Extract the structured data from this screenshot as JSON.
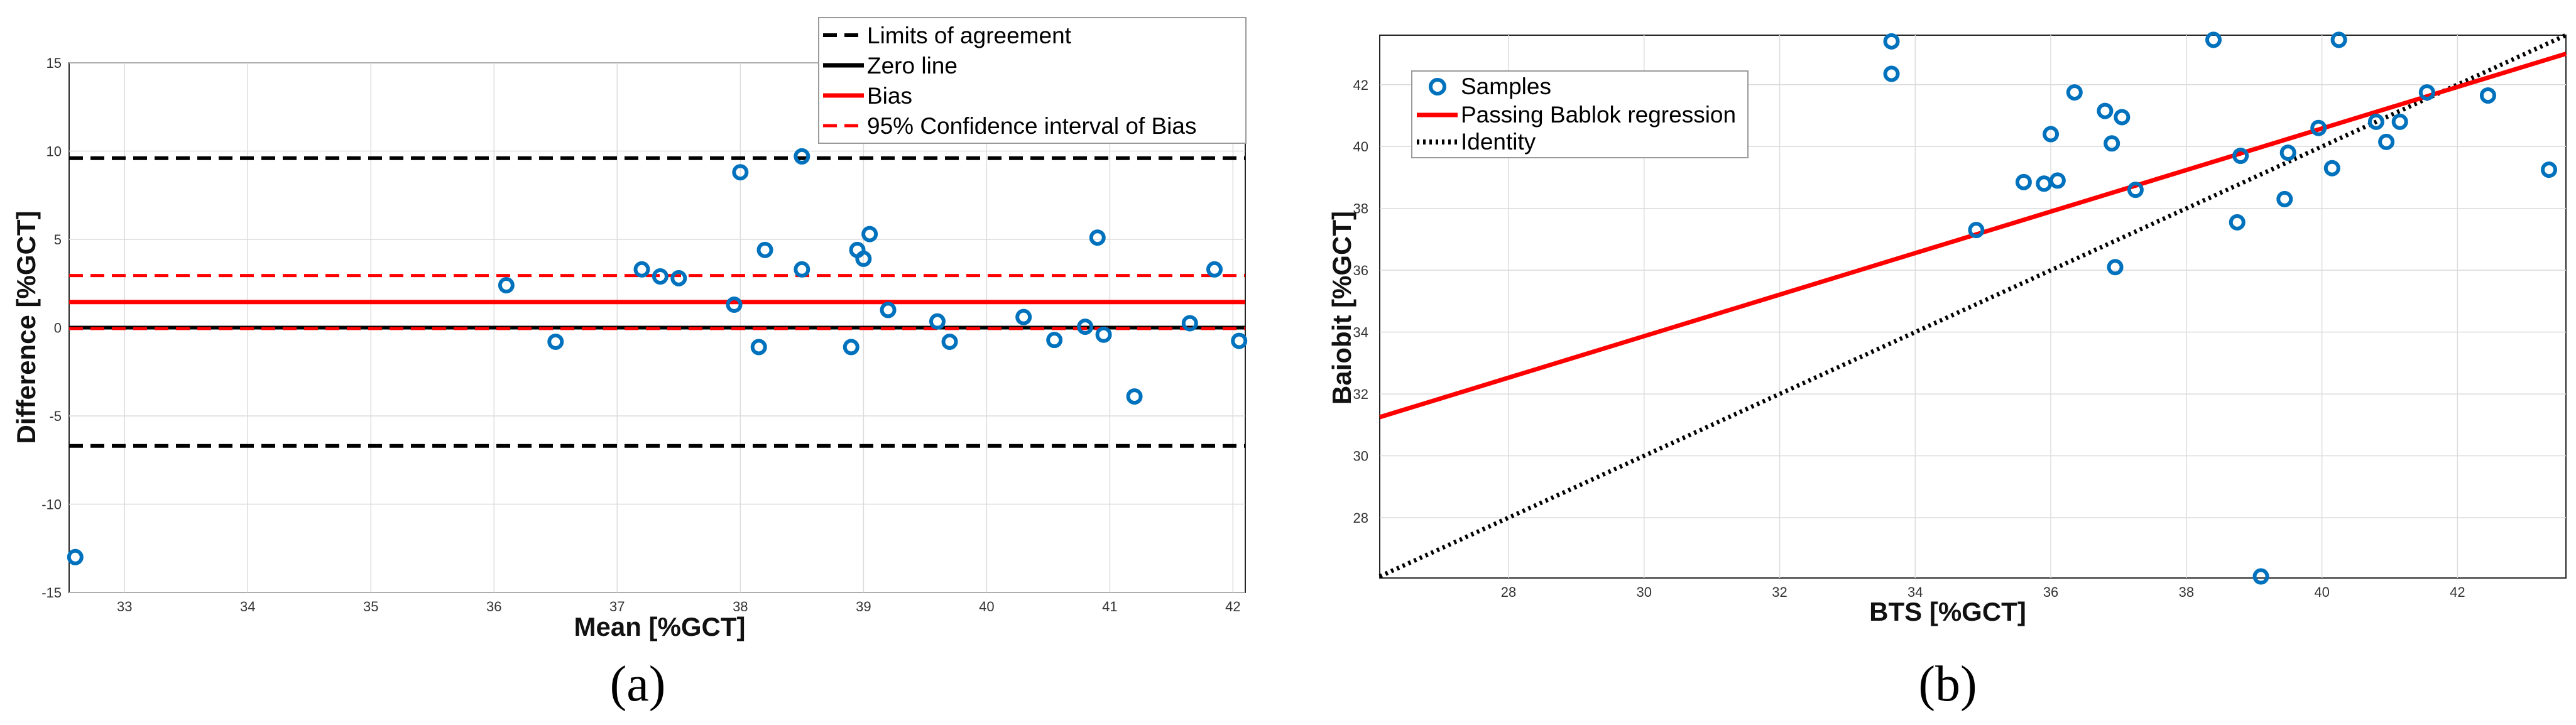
{
  "chart_data": [
    {
      "type": "scatter",
      "panel_label": "(a)",
      "xlabel": "Mean [%GCT]",
      "ylabel": "Difference [%GCT]",
      "xlim": [
        32.55,
        42.1
      ],
      "ylim": [
        -15,
        15
      ],
      "xticks": [
        33,
        34,
        35,
        36,
        37,
        38,
        39,
        40,
        41,
        42
      ],
      "yticks": [
        -15,
        -10,
        -5,
        0,
        5,
        10,
        15
      ],
      "grid": true,
      "legend_position": "top-right",
      "legend": [
        {
          "label": "Limits of agreement",
          "style": "dashed",
          "color": "#000000"
        },
        {
          "label": "Zero line",
          "style": "solid",
          "color": "#000000"
        },
        {
          "label": "Bias",
          "style": "solid",
          "color": "#ff0000"
        },
        {
          "label": "95% Confidence interval of Bias",
          "style": "dashed",
          "color": "#ff0000"
        }
      ],
      "lines": {
        "upper_limit": 9.6,
        "lower_limit": -6.7,
        "zero": 0,
        "bias": 1.45,
        "bias_ci_upper": 2.95,
        "bias_ci_lower": -0.05
      },
      "marker_color": "#0072bd",
      "points": [
        [
          32.6,
          -13.0
        ],
        [
          36.1,
          2.4
        ],
        [
          36.5,
          -0.8
        ],
        [
          37.2,
          3.3
        ],
        [
          37.35,
          2.9
        ],
        [
          37.5,
          2.8
        ],
        [
          37.95,
          1.3
        ],
        [
          38.0,
          8.8
        ],
        [
          38.15,
          -1.1
        ],
        [
          38.2,
          4.4
        ],
        [
          38.5,
          3.3
        ],
        [
          38.5,
          9.7
        ],
        [
          38.9,
          -1.1
        ],
        [
          38.95,
          4.4
        ],
        [
          39.0,
          3.9
        ],
        [
          39.05,
          5.3
        ],
        [
          39.2,
          1.0
        ],
        [
          39.6,
          0.35
        ],
        [
          39.7,
          -0.8
        ],
        [
          40.3,
          0.6
        ],
        [
          40.55,
          -0.7
        ],
        [
          40.8,
          0.05
        ],
        [
          40.9,
          5.1
        ],
        [
          40.95,
          -0.4
        ],
        [
          41.2,
          -3.9
        ],
        [
          41.65,
          0.25
        ],
        [
          41.85,
          3.3
        ],
        [
          42.05,
          -0.75
        ]
      ]
    },
    {
      "type": "scatter",
      "panel_label": "(b)",
      "xlabel": "BTS [%GCT]",
      "ylabel": "Baiobit [%GCT]",
      "xlim": [
        26.1,
        43.6
      ],
      "ylim": [
        26.05,
        43.6
      ],
      "xticks": [
        28,
        30,
        32,
        34,
        36,
        38,
        40,
        42
      ],
      "yticks": [
        28,
        30,
        32,
        34,
        36,
        38,
        40,
        42
      ],
      "grid": true,
      "legend_position": "top-left",
      "legend": [
        {
          "label": "Samples",
          "style": "marker",
          "color": "#0072bd"
        },
        {
          "label": "Passing Bablok regression",
          "style": "solid",
          "color": "#ff0000"
        },
        {
          "label": "Identity",
          "style": "dotted",
          "color": "#000000"
        }
      ],
      "regression": {
        "x_start": 26.1,
        "y_start": 31.25,
        "x_end": 43.6,
        "y_end": 43.0
      },
      "identity": {
        "x_start": 26.1,
        "y_start": 26.1,
        "x_end": 43.6,
        "y_end": 43.6
      },
      "marker_color": "#0072bd",
      "points": [
        [
          33.65,
          43.4
        ],
        [
          33.65,
          42.35
        ],
        [
          34.9,
          37.3
        ],
        [
          35.6,
          38.85
        ],
        [
          35.9,
          38.8
        ],
        [
          36.0,
          40.4
        ],
        [
          36.1,
          38.9
        ],
        [
          36.35,
          41.75
        ],
        [
          36.8,
          41.15
        ],
        [
          36.9,
          40.1
        ],
        [
          36.95,
          36.1
        ],
        [
          37.05,
          40.95
        ],
        [
          37.25,
          38.6
        ],
        [
          38.4,
          43.45
        ],
        [
          38.75,
          37.55
        ],
        [
          38.8,
          39.7
        ],
        [
          39.1,
          26.1
        ],
        [
          39.45,
          38.3
        ],
        [
          39.5,
          39.8
        ],
        [
          39.95,
          40.6
        ],
        [
          40.15,
          39.3
        ],
        [
          40.25,
          43.45
        ],
        [
          40.8,
          40.8
        ],
        [
          40.95,
          40.15
        ],
        [
          41.15,
          40.8
        ],
        [
          41.55,
          41.75
        ],
        [
          42.45,
          41.65
        ],
        [
          43.35,
          39.25
        ]
      ]
    }
  ]
}
